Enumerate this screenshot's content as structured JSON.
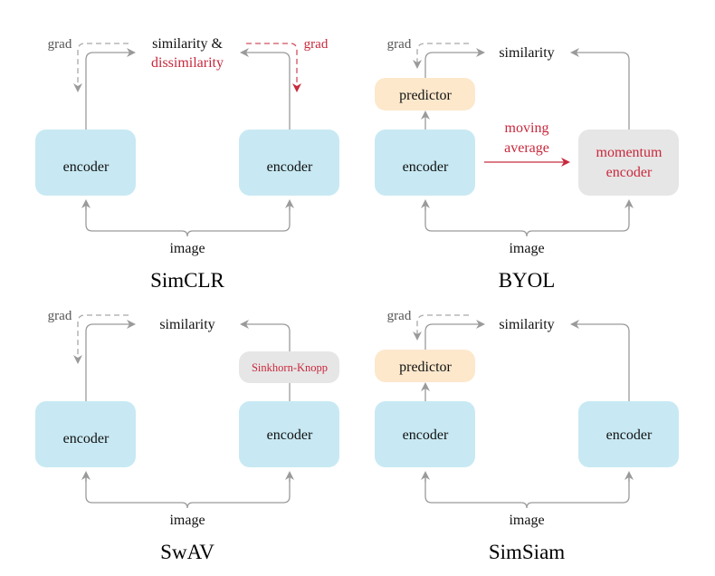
{
  "colors": {
    "encoder": "#c8e9f3",
    "predictor": "#fde8cc",
    "momentum": "#e6e6e6",
    "red": "#c8283c",
    "gray": "#9a9a9a"
  },
  "simclr": {
    "title": "SimCLR",
    "similarity": "similarity &",
    "dissimilarity": "dissimilarity",
    "grad_left": "grad",
    "grad_right": "grad",
    "encoder_left": "encoder",
    "encoder_right": "encoder",
    "image": "image"
  },
  "byol": {
    "title": "BYOL",
    "similarity": "similarity",
    "grad": "grad",
    "predictor": "predictor",
    "encoder": "encoder",
    "moving": "moving",
    "average": "average",
    "momentum": "momentum",
    "momentum_encoder": "encoder",
    "image": "image"
  },
  "swav": {
    "title": "SwAV",
    "similarity": "similarity",
    "grad": "grad",
    "sinkhorn": "Sinkhorn-Knopp",
    "encoder_left": "encoder",
    "encoder_right": "encoder",
    "image": "image"
  },
  "simsiam": {
    "title": "SimSiam",
    "similarity": "similarity",
    "grad": "grad",
    "predictor": "predictor",
    "encoder_left": "encoder",
    "encoder_right": "encoder",
    "image": "image"
  }
}
